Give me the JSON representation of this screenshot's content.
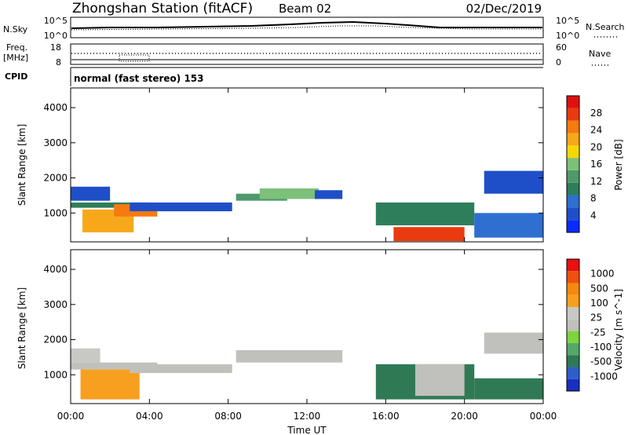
{
  "header": {
    "station": "Zhongshan Station (fitACF)",
    "beam": "Beam 02",
    "date": "02/Dec/2019"
  },
  "summary": {
    "nsky_label": "N.Sky",
    "nsearch_label": "N.Search",
    "freq_label_1": "Freq.",
    "freq_label_2": "[MHz]",
    "nave_label": "Nave",
    "cpid_label": "CPID",
    "cpid_text": "normal (fast stereo) 153",
    "noise_ticks": [
      "10^5",
      "10^0"
    ],
    "freq_ticks": [
      "18",
      "8"
    ],
    "nave_ticks": [
      "60",
      "0"
    ]
  },
  "chart_data": [
    {
      "type": "heatmap",
      "panel": "power",
      "ylabel": "Slant Range [km]",
      "ylim": [
        180,
        4560
      ],
      "yticks": [
        "1000",
        "2000",
        "3000",
        "4000"
      ],
      "xlim_hours": [
        0,
        24
      ],
      "colorbar_label": "Power [dB]",
      "colorbar_ticks": [
        "28",
        "24",
        "20",
        "16",
        "12",
        "8",
        "4"
      ],
      "colors": [
        "#0a2aff",
        "#1f4fc8",
        "#2e6fd0",
        "#2e7d5b",
        "#4f9a6a",
        "#7dc07a",
        "#f5d800",
        "#f7a81a",
        "#f57a10",
        "#ea3a10",
        "#e01010"
      ],
      "bands": [
        {
          "t": [
            0.0,
            2.0
          ],
          "r": [
            1350,
            1750
          ],
          "level": 1
        },
        {
          "t": [
            0.0,
            4.0
          ],
          "r": [
            1150,
            1300
          ],
          "level": 3
        },
        {
          "t": [
            0.6,
            3.2
          ],
          "r": [
            450,
            1100
          ],
          "level": 7
        },
        {
          "t": [
            2.2,
            4.4
          ],
          "r": [
            900,
            1250
          ],
          "level": 8
        },
        {
          "t": [
            3.0,
            8.2
          ],
          "r": [
            1050,
            1300
          ],
          "level": 1
        },
        {
          "t": [
            8.4,
            11.0
          ],
          "r": [
            1350,
            1550
          ],
          "level": 4
        },
        {
          "t": [
            9.6,
            12.6
          ],
          "r": [
            1400,
            1700
          ],
          "level": 5
        },
        {
          "t": [
            12.4,
            13.8
          ],
          "r": [
            1400,
            1650
          ],
          "level": 1
        },
        {
          "t": [
            15.5,
            20.5
          ],
          "r": [
            650,
            1300
          ],
          "level": 3
        },
        {
          "t": [
            16.4,
            20.0
          ],
          "r": [
            200,
            600
          ],
          "level": 9
        },
        {
          "t": [
            20.5,
            24.0
          ],
          "r": [
            300,
            1000
          ],
          "level": 2
        },
        {
          "t": [
            21.0,
            24.0
          ],
          "r": [
            1550,
            2200
          ],
          "level": 1
        }
      ]
    },
    {
      "type": "heatmap",
      "panel": "velocity",
      "ylabel": "Slant Range [km]",
      "ylim": [
        180,
        4560
      ],
      "yticks": [
        "1000",
        "2000",
        "3000",
        "4000"
      ],
      "xticks": [
        "00:00",
        "04:00",
        "08:00",
        "12:00",
        "16:00",
        "20:00",
        "00:00"
      ],
      "xlim_hours": [
        0,
        24
      ],
      "xlabel": "Time UT",
      "colorbar_label": "Velocity [m s^-1]",
      "colorbar_ticks": [
        "1000",
        "500",
        "100",
        "25",
        "-25",
        "-100",
        "-500",
        "-1000"
      ],
      "colors": [
        "#1a2fc0",
        "#2e5fc8",
        "#2f7a55",
        "#54a86a",
        "#7ed43c",
        "#c0c0bc",
        "#c8c8c4",
        "#f7a020",
        "#f58a10",
        "#f05010",
        "#e81010"
      ],
      "bands": [
        {
          "t": [
            0.0,
            4.4
          ],
          "r": [
            1150,
            1350
          ],
          "level": 5
        },
        {
          "t": [
            0.0,
            1.5
          ],
          "r": [
            1350,
            1750
          ],
          "level": 6
        },
        {
          "t": [
            0.5,
            3.5
          ],
          "r": [
            300,
            1150
          ],
          "level": 7
        },
        {
          "t": [
            3.0,
            8.2
          ],
          "r": [
            1050,
            1300
          ],
          "level": 5
        },
        {
          "t": [
            8.4,
            13.8
          ],
          "r": [
            1350,
            1700
          ],
          "level": 5
        },
        {
          "t": [
            15.5,
            20.5
          ],
          "r": [
            300,
            1300
          ],
          "level": 2
        },
        {
          "t": [
            17.5,
            20.0
          ],
          "r": [
            400,
            1300
          ],
          "level": 5
        },
        {
          "t": [
            20.5,
            24.0
          ],
          "r": [
            300,
            900
          ],
          "level": 2
        },
        {
          "t": [
            21.0,
            24.0
          ],
          "r": [
            1600,
            2200
          ],
          "level": 5
        }
      ]
    }
  ]
}
